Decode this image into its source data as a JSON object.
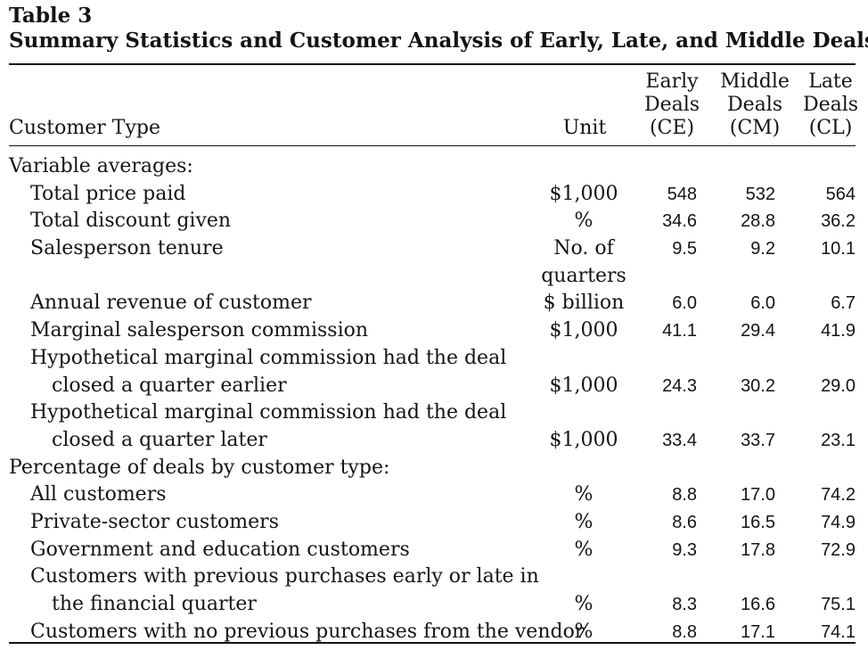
{
  "table": {
    "label": "Table 3",
    "title": "Summary Statistics and Customer Analysis of Early, Late, and Middle Deals",
    "headers": {
      "customer_type": "Customer Type",
      "unit": "Unit",
      "early": [
        "Early",
        "Deals",
        "(CE)"
      ],
      "middle": [
        "Middle",
        "Deals",
        "(CM)"
      ],
      "late": [
        "Late",
        "Deals",
        "(CL)"
      ]
    },
    "rows": [
      {
        "label": "Variable averages:",
        "indent": 0,
        "unit": "",
        "early": "",
        "middle": "",
        "late": ""
      },
      {
        "label": "Total price paid",
        "indent": 1,
        "unit": "$1,000",
        "early": "548",
        "middle": "532",
        "late": "564"
      },
      {
        "label": "Total discount given",
        "indent": 1,
        "unit": "%",
        "early": "34.6",
        "middle": "28.8",
        "late": "36.2"
      },
      {
        "label": "Salesperson tenure",
        "indent": 1,
        "unit": "No. of",
        "early": "9.5",
        "middle": "9.2",
        "late": "10.1"
      },
      {
        "label": "",
        "indent": 1,
        "unit": "quarters",
        "early": "",
        "middle": "",
        "late": ""
      },
      {
        "label": "Annual revenue of customer",
        "indent": 1,
        "unit": "$ billion",
        "early": "6.0",
        "middle": "6.0",
        "late": "6.7"
      },
      {
        "label": "Marginal salesperson commission",
        "indent": 1,
        "unit": "$1,000",
        "early": "41.1",
        "middle": "29.4",
        "late": "41.9"
      },
      {
        "label": "Hypothetical marginal commission had the deal",
        "indent": 1,
        "unit": "",
        "early": "",
        "middle": "",
        "late": ""
      },
      {
        "label": "closed a quarter earlier",
        "indent": 2,
        "unit": "$1,000",
        "early": "24.3",
        "middle": "30.2",
        "late": "29.0"
      },
      {
        "label": "Hypothetical marginal commission had the deal",
        "indent": 1,
        "unit": "",
        "early": "",
        "middle": "",
        "late": ""
      },
      {
        "label": "closed a quarter later",
        "indent": 2,
        "unit": "$1,000",
        "early": "33.4",
        "middle": "33.7",
        "late": "23.1"
      },
      {
        "label": "Percentage of deals by customer type:",
        "indent": 0,
        "unit": "",
        "early": "",
        "middle": "",
        "late": ""
      },
      {
        "label": "All customers",
        "indent": 1,
        "unit": "%",
        "early": "8.8",
        "middle": "17.0",
        "late": "74.2"
      },
      {
        "label": "Private-sector customers",
        "indent": 1,
        "unit": "%",
        "early": "8.6",
        "middle": "16.5",
        "late": "74.9"
      },
      {
        "label": "Government and education customers",
        "indent": 1,
        "unit": "%",
        "early": "9.3",
        "middle": "17.8",
        "late": "72.9"
      },
      {
        "label": "Customers with previous purchases early or late in",
        "indent": 1,
        "unit": "",
        "early": "",
        "middle": "",
        "late": ""
      },
      {
        "label": "the financial quarter",
        "indent": 2,
        "unit": "%",
        "early": "8.3",
        "middle": "16.6",
        "late": "75.1"
      },
      {
        "label": "Customers with no previous purchases from the vendor",
        "indent": 1,
        "unit": "%",
        "early": "8.8",
        "middle": "17.1",
        "late": "74.1"
      }
    ]
  }
}
